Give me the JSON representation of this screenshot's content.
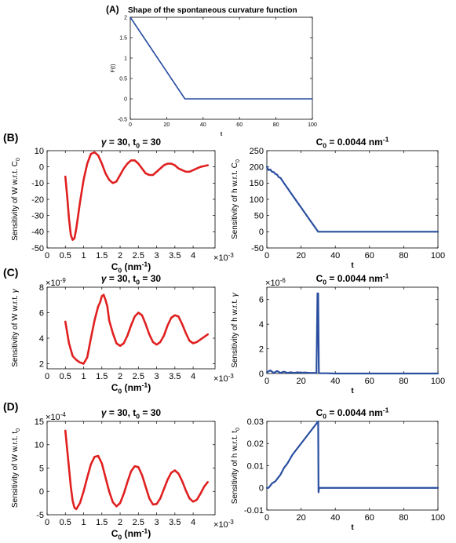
{
  "panels": {
    "A": {
      "letter": "(A)",
      "title": "Shape of the spontaneous curvature function"
    },
    "B": {
      "letter": "(B)"
    },
    "C": {
      "letter": "(C)"
    },
    "D": {
      "letter": "(D)"
    }
  },
  "colors": {
    "red": "#e02020",
    "blue": "#2a4ea0",
    "axis": "#000000"
  },
  "chart_data": [
    {
      "id": "A",
      "type": "line",
      "title": "",
      "xlabel": "t",
      "ylabel": "F(t)",
      "xlim": [
        0,
        100
      ],
      "ylim": [
        -0.5,
        2
      ],
      "xticks": [
        0,
        20,
        40,
        60,
        80,
        100
      ],
      "yticks": [
        -0.5,
        0,
        0.5,
        1,
        1.5,
        2
      ],
      "series": [
        {
          "x": [
            0,
            30,
            100
          ],
          "y": [
            2,
            0,
            0
          ]
        }
      ]
    },
    {
      "id": "B-left",
      "type": "line",
      "title": "γ = 30, t0 = 30",
      "xlabel": "C0 (nm-1)",
      "ylabel": "Sensitivity of W  w.r.t. C0",
      "x_multiplier": "×10-3",
      "xlim": [
        0,
        4.6
      ],
      "ylim": [
        -50,
        10
      ],
      "xticks": [
        0,
        0.5,
        1,
        1.5,
        2,
        2.5,
        3,
        3.5,
        4
      ],
      "yticks": [
        -50,
        -40,
        -30,
        -20,
        -10,
        0,
        10
      ],
      "series": [
        {
          "x": [
            0.5,
            0.55,
            0.6,
            0.65,
            0.7,
            0.75,
            0.8,
            0.9,
            1.0,
            1.1,
            1.2,
            1.3,
            1.4,
            1.5,
            1.6,
            1.7,
            1.8,
            1.9,
            2.0,
            2.1,
            2.2,
            2.3,
            2.4,
            2.5,
            2.6,
            2.7,
            2.8,
            2.9,
            3.0,
            3.1,
            3.2,
            3.3,
            3.4,
            3.5,
            3.6,
            3.7,
            3.8,
            3.9,
            4.0,
            4.1,
            4.2,
            4.3,
            4.4
          ],
          "y": [
            -6,
            -18,
            -32,
            -42,
            -45,
            -44,
            -38,
            -22,
            -8,
            2,
            8,
            9,
            7,
            2,
            -4,
            -8,
            -10,
            -9,
            -5,
            -1,
            2,
            4,
            4,
            2,
            -1,
            -4,
            -5,
            -5,
            -3,
            -1,
            1,
            2,
            2,
            1,
            -1,
            -2,
            -3,
            -3,
            -2,
            -1,
            0,
            0.5,
            1
          ]
        }
      ]
    },
    {
      "id": "B-right",
      "type": "line",
      "title": "C0 = 0.0044 nm-1",
      "xlabel": "t",
      "ylabel": "Sensitivity of h w.r.t. C0",
      "xlim": [
        0,
        100
      ],
      "ylim": [
        -50,
        250
      ],
      "xticks": [
        0,
        20,
        40,
        60,
        80,
        100
      ],
      "yticks": [
        -50,
        0,
        50,
        100,
        150,
        200,
        250
      ],
      "series": [
        {
          "x": [
            0,
            1,
            2,
            3,
            4,
            5,
            6,
            7,
            8,
            10,
            12,
            15,
            20,
            25,
            30,
            35,
            40,
            60,
            80,
            100
          ],
          "y": [
            200,
            190,
            192,
            185,
            184,
            178,
            176,
            168,
            166,
            150,
            135,
            112,
            75,
            37,
            0,
            0,
            0,
            0,
            0,
            0
          ]
        }
      ]
    },
    {
      "id": "C-left",
      "type": "line",
      "title": "γ = 30, t0 = 30",
      "xlabel": "C0 (nm-1)",
      "ylabel": "Sensitivity of W  w.r.t. γ",
      "y_multiplier": "×10-9",
      "x_multiplier": "×10-3",
      "xlim": [
        0,
        4.6
      ],
      "ylim": [
        1.6,
        8
      ],
      "xticks": [
        0,
        0.5,
        1,
        1.5,
        2,
        2.5,
        3,
        3.5,
        4
      ],
      "yticks": [
        2,
        4,
        6,
        8
      ],
      "series": [
        {
          "x": [
            0.5,
            0.6,
            0.7,
            0.8,
            0.9,
            1.0,
            1.1,
            1.2,
            1.3,
            1.4,
            1.45,
            1.5,
            1.55,
            1.6,
            1.65,
            1.7,
            1.8,
            1.9,
            2.0,
            2.1,
            2.2,
            2.3,
            2.4,
            2.5,
            2.6,
            2.7,
            2.8,
            2.9,
            3.0,
            3.1,
            3.2,
            3.3,
            3.4,
            3.5,
            3.6,
            3.7,
            3.8,
            3.9,
            4.0,
            4.1,
            4.2,
            4.3,
            4.4
          ],
          "y": [
            5.3,
            3.6,
            2.6,
            2.3,
            2.1,
            2.0,
            2.5,
            4.0,
            5.4,
            6.5,
            6.8,
            7.3,
            7.4,
            7.0,
            6.5,
            5.4,
            4.4,
            3.6,
            3.4,
            3.6,
            4.2,
            5.0,
            5.7,
            6.0,
            5.8,
            5.1,
            4.3,
            3.7,
            3.5,
            3.7,
            4.2,
            5.0,
            5.6,
            5.8,
            5.7,
            5.1,
            4.4,
            3.8,
            3.6,
            3.7,
            3.9,
            4.1,
            4.3
          ]
        }
      ]
    },
    {
      "id": "C-right",
      "type": "line",
      "title": "C0 = 0.0044 nm-1",
      "xlabel": "t",
      "ylabel": "Sensitivity of h w.r.t. γ",
      "y_multiplier": "×10-6",
      "xlim": [
        0,
        100
      ],
      "ylim": [
        0,
        7
      ],
      "xticks": [
        0,
        20,
        40,
        60,
        80,
        100
      ],
      "yticks": [
        0,
        2,
        4,
        6
      ],
      "series": [
        {
          "x": [
            0,
            2,
            4,
            6,
            8,
            10,
            12,
            14,
            16,
            18,
            20,
            22,
            25,
            28,
            29,
            29.6,
            30,
            30.4,
            31,
            35,
            40,
            60,
            80,
            100
          ],
          "y": [
            0.1,
            0.25,
            0.05,
            0.2,
            0.05,
            0.15,
            0.05,
            0.1,
            0.05,
            0.1,
            0.05,
            0.08,
            0.05,
            0.05,
            0.05,
            6.5,
            6.5,
            0.05,
            0.02,
            0.02,
            0.0,
            0.0,
            0.0,
            0.0
          ]
        }
      ]
    },
    {
      "id": "D-left",
      "type": "line",
      "title": "γ = 30, t0 = 30",
      "xlabel": "C0 (nm-1)",
      "ylabel": "Sensitivity of W  w.r.t. t0",
      "y_multiplier": "×10-4",
      "x_multiplier": "×10-3",
      "xlim": [
        0,
        4.6
      ],
      "ylim": [
        -5,
        15
      ],
      "xticks": [
        0,
        0.5,
        1,
        1.5,
        2,
        2.5,
        3,
        3.5,
        4
      ],
      "yticks": [
        -5,
        0,
        5,
        10,
        15
      ],
      "series": [
        {
          "x": [
            0.5,
            0.55,
            0.6,
            0.65,
            0.7,
            0.75,
            0.8,
            0.9,
            1.0,
            1.1,
            1.2,
            1.3,
            1.4,
            1.5,
            1.6,
            1.7,
            1.8,
            1.9,
            2.0,
            2.1,
            2.2,
            2.3,
            2.4,
            2.5,
            2.6,
            2.7,
            2.8,
            2.9,
            3.0,
            3.1,
            3.2,
            3.3,
            3.4,
            3.5,
            3.6,
            3.7,
            3.8,
            3.9,
            4.0,
            4.1,
            4.2,
            4.3,
            4.4
          ],
          "y": [
            13,
            9,
            5,
            1,
            -2,
            -3.5,
            -3.8,
            -2.5,
            0,
            3,
            5.8,
            7.4,
            7.6,
            6,
            3,
            0,
            -2.3,
            -3.2,
            -2.5,
            -0.5,
            2,
            4.3,
            5.4,
            5.2,
            3.5,
            1,
            -1.5,
            -2.8,
            -2.7,
            -1.5,
            0.5,
            2.5,
            4,
            4.5,
            3.8,
            2.2,
            0.2,
            -1.5,
            -2.2,
            -1.8,
            -0.5,
            1,
            2
          ]
        }
      ]
    },
    {
      "id": "D-right",
      "type": "line",
      "title": "C0 = 0.0044 nm-1",
      "xlabel": "t",
      "ylabel": "Sensitivity of h w.r.t. t0",
      "xlim": [
        0,
        100
      ],
      "ylim": [
        -0.01,
        0.03
      ],
      "xticks": [
        0,
        20,
        40,
        60,
        80,
        100
      ],
      "yticks": [
        -0.01,
        0,
        0.01,
        0.02,
        0.03
      ],
      "series": [
        {
          "x": [
            0,
            1,
            2,
            3,
            5,
            8,
            10,
            12,
            15,
            20,
            25,
            29,
            30,
            30.2,
            30.5,
            31,
            35,
            40,
            60,
            80,
            100
          ],
          "y": [
            0,
            0,
            0.001,
            0.002,
            0.003,
            0.006,
            0.009,
            0.011,
            0.015,
            0.02,
            0.025,
            0.029,
            0.03,
            -0.002,
            0,
            0,
            0,
            0,
            0,
            0,
            0
          ]
        }
      ]
    }
  ]
}
